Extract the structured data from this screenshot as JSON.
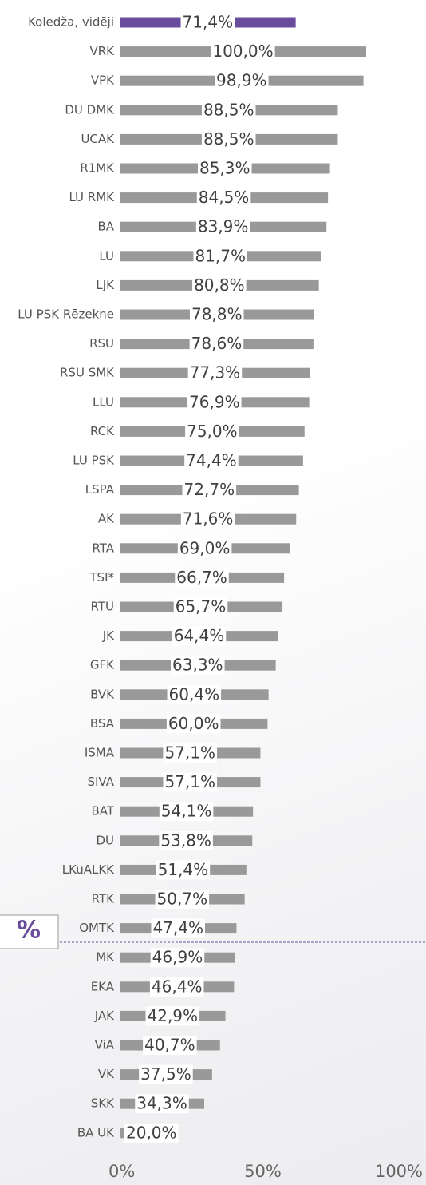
{
  "chart_data": {
    "type": "hbar",
    "categories": [
      "Koledža, vidēji",
      "VRK",
      "VPK",
      "DU DMK",
      "UCAK",
      "R1MK",
      "LU RMK",
      "BA",
      "LU",
      "LJK",
      "LU PSK Rēzekne",
      "RSU",
      "RSU SMK",
      "LLU",
      "RCK",
      "LU PSK",
      "LSPA",
      "AK",
      "RTA",
      "TSI*",
      "RTU",
      "JK",
      "GFK",
      "BVK",
      "BSA",
      "ISMA",
      "SIVA",
      "BAT",
      "DU",
      "LKuALKK",
      "RTK",
      "OMTK",
      "MK",
      "EKA",
      "JAK",
      "ViA",
      "VK",
      "SKK",
      "BA UK"
    ],
    "values": [
      71.4,
      100.0,
      98.9,
      88.5,
      88.5,
      85.3,
      84.5,
      83.9,
      81.7,
      80.8,
      78.8,
      78.6,
      77.3,
      76.9,
      75.0,
      74.4,
      72.7,
      71.6,
      69.0,
      66.7,
      65.7,
      64.4,
      63.3,
      60.4,
      60.0,
      57.1,
      57.1,
      54.1,
      53.8,
      51.4,
      50.7,
      47.4,
      46.9,
      46.4,
      42.9,
      40.7,
      37.5,
      34.3,
      20.0
    ],
    "value_labels": [
      "71,4%",
      "100,0%",
      "98,9%",
      "88,5%",
      "88,5%",
      "85,3%",
      "84,5%",
      "83,9%",
      "81,7%",
      "80,8%",
      "78,8%",
      "78,6%",
      "77,3%",
      "76,9%",
      "75,0%",
      "74,4%",
      "72,7%",
      "71,6%",
      "69,0%",
      "66,7%",
      "65,7%",
      "64,4%",
      "63,3%",
      "60,4%",
      "60,0%",
      "57,1%",
      "57,1%",
      "54,1%",
      "53,8%",
      "51,4%",
      "50,7%",
      "47,4%",
      "46,9%",
      "46,4%",
      "42,9%",
      "40,7%",
      "37,5%",
      "34,3%",
      "20,0%"
    ],
    "colors": [
      "#6a4c9c",
      "#999999",
      "#999999",
      "#999999",
      "#999999",
      "#999999",
      "#999999",
      "#999999",
      "#999999",
      "#999999",
      "#999999",
      "#999999",
      "#999999",
      "#999999",
      "#999999",
      "#999999",
      "#999999",
      "#999999",
      "#999999",
      "#999999",
      "#999999",
      "#999999",
      "#999999",
      "#999999",
      "#999999",
      "#999999",
      "#999999",
      "#999999",
      "#999999",
      "#999999",
      "#999999",
      "#999999",
      "#999999",
      "#999999",
      "#999999",
      "#999999",
      "#999999",
      "#999999",
      "#999999"
    ],
    "xlim": [
      0,
      100
    ],
    "xticks": [
      {
        "value": 0,
        "label": "0%"
      },
      {
        "value": 50,
        "label": "50%"
      },
      {
        "value": 100,
        "label": "100%"
      }
    ],
    "annotation": "%"
  }
}
